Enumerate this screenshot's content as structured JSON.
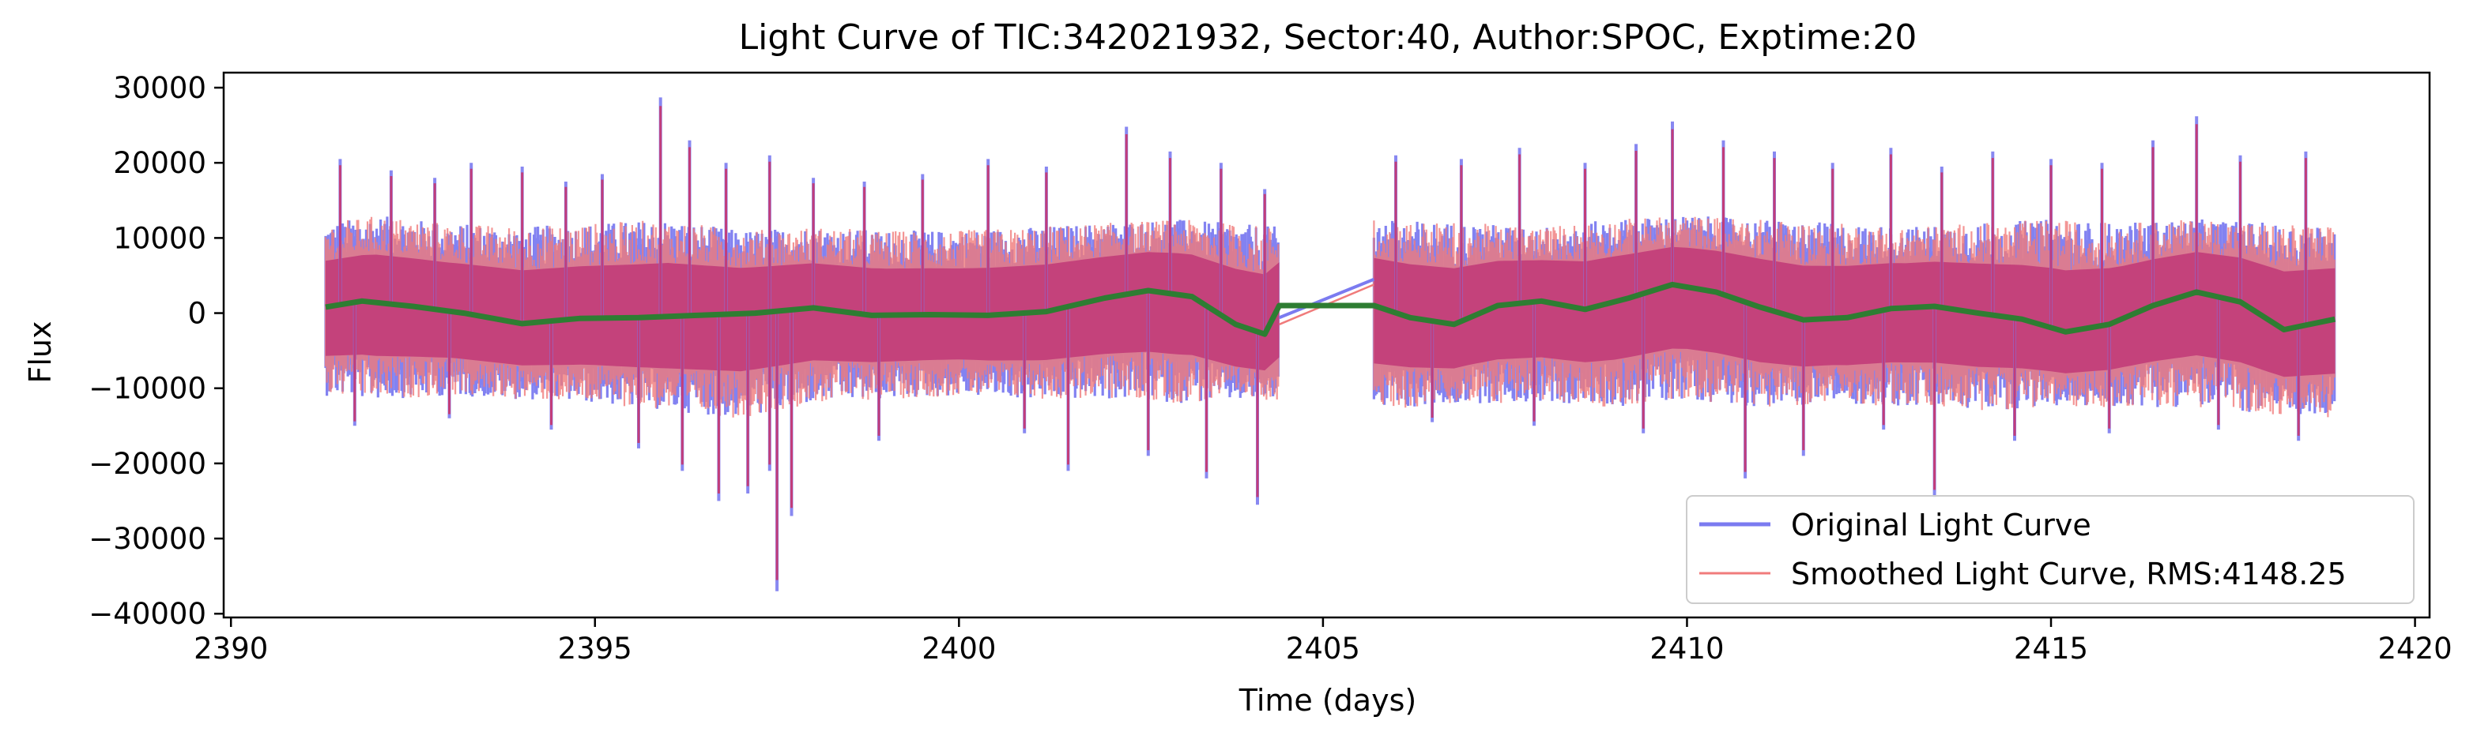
{
  "chart_data": {
    "type": "line",
    "title": "Light Curve of TIC:342021932, Sector:40, Author:SPOC, Exptime:20",
    "xlabel": "Time (days)",
    "ylabel": "Flux",
    "xlim": [
      2389.9,
      2420.2
    ],
    "ylim": [
      -40500,
      32000
    ],
    "xticks": [
      2390,
      2395,
      2400,
      2405,
      2410,
      2415,
      2420
    ],
    "xtick_labels": [
      "2390",
      "2395",
      "2400",
      "2405",
      "2410",
      "2415",
      "2420"
    ],
    "yticks": [
      30000,
      20000,
      10000,
      0,
      -10000,
      -20000,
      -30000,
      -40000
    ],
    "ytick_labels": [
      "30000",
      "20000",
      "10000",
      "0",
      "−10000",
      "−20000",
      "−30000",
      "−40000"
    ],
    "grid": false,
    "legend_position": "lower-right",
    "segments": [
      [
        2391.3,
        2404.4
      ],
      [
        2405.7,
        2418.9
      ]
    ],
    "gap_line": {
      "x": [
        2404.4,
        2405.7
      ],
      "original_y": [
        -600,
        4500
      ],
      "smoothed_y": [
        -1500,
        3800
      ]
    },
    "envelope": {
      "x": [
        2391.3,
        2392,
        2393,
        2394,
        2395,
        2396,
        2397,
        2398,
        2399,
        2400,
        2401,
        2402,
        2403,
        2404.4,
        2405.7,
        2407,
        2408,
        2409,
        2410,
        2411,
        2412,
        2413,
        2414,
        2415,
        2416,
        2417,
        2418,
        2418.9
      ],
      "upper": [
        12000,
        13000,
        12000,
        11500,
        12000,
        12500,
        11000,
        11500,
        11000,
        11000,
        11500,
        12000,
        12500,
        11500,
        12500,
        12000,
        11500,
        12500,
        13000,
        12500,
        12000,
        11500,
        12000,
        12500,
        12000,
        12500,
        12000,
        11500
      ],
      "lower": [
        -11000,
        -11500,
        -11000,
        -11500,
        -12000,
        -13000,
        -14000,
        -12000,
        -11500,
        -11000,
        -11500,
        -11500,
        -12000,
        -11500,
        -13000,
        -12000,
        -12000,
        -12500,
        -11500,
        -12500,
        -12000,
        -12500,
        -13000,
        -12500,
        -12500,
        -12500,
        -13500,
        -14000
      ]
    },
    "spikes": [
      {
        "x": 2391.5,
        "y": 20500
      },
      {
        "x": 2392.2,
        "y": 19000
      },
      {
        "x": 2392.8,
        "y": 18000
      },
      {
        "x": 2393.3,
        "y": 20000
      },
      {
        "x": 2394.0,
        "y": 19500
      },
      {
        "x": 2394.6,
        "y": 17500
      },
      {
        "x": 2395.1,
        "y": 18500
      },
      {
        "x": 2395.9,
        "y": 28700
      },
      {
        "x": 2396.3,
        "y": 23000
      },
      {
        "x": 2396.8,
        "y": 20000
      },
      {
        "x": 2397.4,
        "y": 21000
      },
      {
        "x": 2398.0,
        "y": 18000
      },
      {
        "x": 2398.7,
        "y": 17500
      },
      {
        "x": 2399.5,
        "y": 18500
      },
      {
        "x": 2400.4,
        "y": 20500
      },
      {
        "x": 2401.2,
        "y": 19500
      },
      {
        "x": 2402.3,
        "y": 24800
      },
      {
        "x": 2402.9,
        "y": 21500
      },
      {
        "x": 2403.6,
        "y": 20000
      },
      {
        "x": 2404.2,
        "y": 16500
      },
      {
        "x": 2406.0,
        "y": 21000
      },
      {
        "x": 2406.9,
        "y": 20500
      },
      {
        "x": 2407.7,
        "y": 22000
      },
      {
        "x": 2408.6,
        "y": 20000
      },
      {
        "x": 2409.3,
        "y": 22500
      },
      {
        "x": 2409.8,
        "y": 25500
      },
      {
        "x": 2410.5,
        "y": 23000
      },
      {
        "x": 2411.2,
        "y": 21500
      },
      {
        "x": 2412.0,
        "y": 20000
      },
      {
        "x": 2412.8,
        "y": 22000
      },
      {
        "x": 2413.5,
        "y": 19500
      },
      {
        "x": 2414.2,
        "y": 21500
      },
      {
        "x": 2415.0,
        "y": 20500
      },
      {
        "x": 2415.7,
        "y": 20000
      },
      {
        "x": 2416.4,
        "y": 23000
      },
      {
        "x": 2417.0,
        "y": 26200
      },
      {
        "x": 2417.6,
        "y": 21000
      },
      {
        "x": 2418.5,
        "y": 21500
      },
      {
        "x": 2391.7,
        "y": -15000
      },
      {
        "x": 2393.0,
        "y": -14000
      },
      {
        "x": 2394.4,
        "y": -15500
      },
      {
        "x": 2395.6,
        "y": -18000
      },
      {
        "x": 2396.2,
        "y": -21000
      },
      {
        "x": 2396.7,
        "y": -25000
      },
      {
        "x": 2397.1,
        "y": -24000
      },
      {
        "x": 2397.4,
        "y": -21000
      },
      {
        "x": 2397.5,
        "y": -37000
      },
      {
        "x": 2397.7,
        "y": -27000
      },
      {
        "x": 2398.9,
        "y": -17000
      },
      {
        "x": 2400.9,
        "y": -16000
      },
      {
        "x": 2401.5,
        "y": -21000
      },
      {
        "x": 2402.6,
        "y": -19000
      },
      {
        "x": 2403.4,
        "y": -22000
      },
      {
        "x": 2404.1,
        "y": -25500
      },
      {
        "x": 2406.5,
        "y": -14500
      },
      {
        "x": 2407.9,
        "y": -15000
      },
      {
        "x": 2409.4,
        "y": -16000
      },
      {
        "x": 2410.8,
        "y": -22000
      },
      {
        "x": 2411.6,
        "y": -19000
      },
      {
        "x": 2412.7,
        "y": -15500
      },
      {
        "x": 2413.4,
        "y": -24500
      },
      {
        "x": 2414.5,
        "y": -17000
      },
      {
        "x": 2415.8,
        "y": -16000
      },
      {
        "x": 2417.3,
        "y": -15500
      },
      {
        "x": 2418.4,
        "y": -17000
      }
    ],
    "trend": {
      "x": [
        2391.3,
        2391.8,
        2392.5,
        2393.2,
        2394.0,
        2394.8,
        2395.6,
        2396.4,
        2397.2,
        2398.0,
        2398.8,
        2399.6,
        2400.4,
        2401.2,
        2402.0,
        2402.6,
        2403.2,
        2403.8,
        2404.2,
        2404.4,
        2405.7,
        2406.2,
        2406.8,
        2407.4,
        2408.0,
        2408.6,
        2409.2,
        2409.8,
        2410.4,
        2411.0,
        2411.6,
        2412.2,
        2412.8,
        2413.4,
        2414.0,
        2414.6,
        2415.2,
        2415.8,
        2416.4,
        2417.0,
        2417.6,
        2418.2,
        2418.9
      ],
      "y": [
        800,
        1600,
        900,
        0,
        -1400,
        -700,
        -600,
        -300,
        0,
        700,
        -300,
        -200,
        -300,
        200,
        2000,
        3000,
        2200,
        -1500,
        -2800,
        1000,
        1000,
        -600,
        -1500,
        1000,
        1600,
        500,
        2000,
        3800,
        2800,
        800,
        -900,
        -600,
        600,
        900,
        0,
        -800,
        -2500,
        -1500,
        1000,
        2800,
        1500,
        -2200,
        -800
      ]
    },
    "series": [
      {
        "name": "Original Light Curve",
        "color": "#7b7bf0"
      },
      {
        "name": "Smoothed Light Curve, RMS:4148.25",
        "color": "#f07b7b"
      }
    ],
    "trend_color": "#2e7d32",
    "fill_color": "#c23d7a"
  }
}
